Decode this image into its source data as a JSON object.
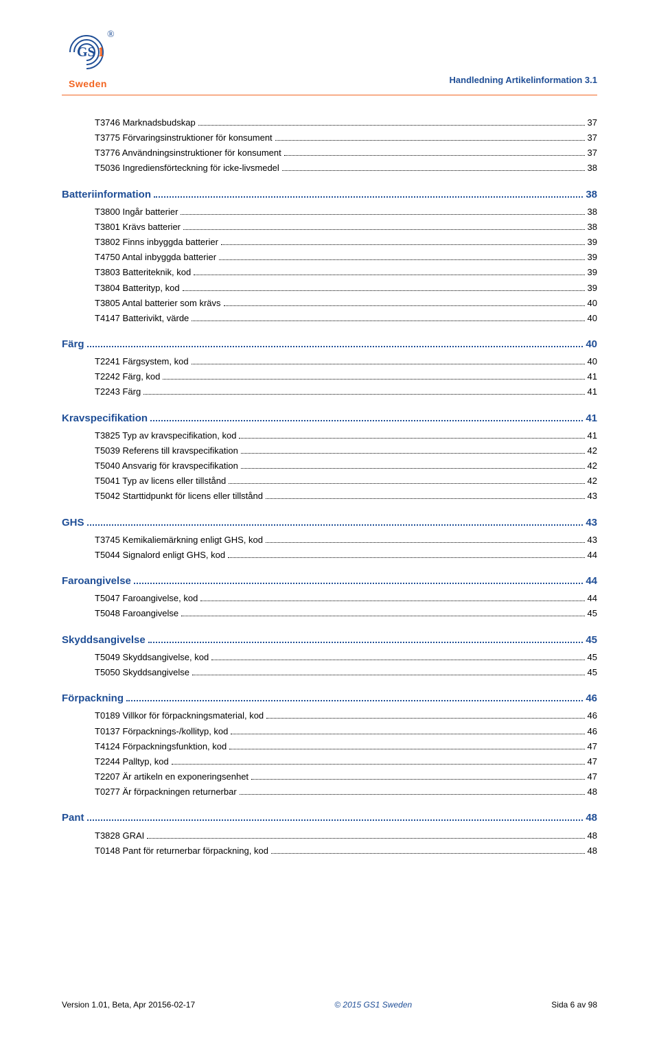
{
  "header": {
    "logo_text": "GS1",
    "logo_subtext": "Sweden",
    "doc_title": "Handledning Artikelinformation 3.1"
  },
  "colors": {
    "accent_blue": "#1f4e96",
    "accent_orange": "#f26522",
    "text_black": "#000000",
    "background": "#ffffff"
  },
  "toc": [
    {
      "level": 2,
      "label": "T3746 Marknadsbudskap",
      "page": "37"
    },
    {
      "level": 2,
      "label": "T3775 Förvaringsinstruktioner för konsument",
      "page": "37"
    },
    {
      "level": 2,
      "label": "T3776 Användningsinstruktioner för konsument",
      "page": "37"
    },
    {
      "level": 2,
      "label": "T5036 Ingrediensförteckning för icke-livsmedel",
      "page": "38"
    },
    {
      "level": 1,
      "label": "Batteriinformation",
      "page": "38"
    },
    {
      "level": 2,
      "label": "T3800 Ingår batterier",
      "page": "38"
    },
    {
      "level": 2,
      "label": "T3801 Krävs batterier",
      "page": "38"
    },
    {
      "level": 2,
      "label": "T3802 Finns inbyggda batterier",
      "page": "39"
    },
    {
      "level": 2,
      "label": "T4750 Antal inbyggda batterier",
      "page": "39"
    },
    {
      "level": 2,
      "label": "T3803 Batteriteknik, kod",
      "page": "39"
    },
    {
      "level": 2,
      "label": "T3804 Batterityp, kod",
      "page": "39"
    },
    {
      "level": 2,
      "label": "T3805 Antal batterier som krävs",
      "page": "40"
    },
    {
      "level": 2,
      "label": "T4147 Batterivikt, värde",
      "page": "40"
    },
    {
      "level": 1,
      "label": "Färg",
      "page": "40"
    },
    {
      "level": 2,
      "label": "T2241 Färgsystem, kod",
      "page": "40"
    },
    {
      "level": 2,
      "label": "T2242 Färg, kod",
      "page": "41"
    },
    {
      "level": 2,
      "label": "T2243 Färg",
      "page": "41"
    },
    {
      "level": 1,
      "label": "Kravspecifikation",
      "page": "41"
    },
    {
      "level": 2,
      "label": "T3825 Typ av kravspecifikation, kod",
      "page": "41"
    },
    {
      "level": 2,
      "label": "T5039 Referens till kravspecifikation",
      "page": "42"
    },
    {
      "level": 2,
      "label": "T5040 Ansvarig för kravspecifikation",
      "page": "42"
    },
    {
      "level": 2,
      "label": "T5041 Typ av licens eller tillstånd",
      "page": "42"
    },
    {
      "level": 2,
      "label": "T5042 Starttidpunkt för licens eller tillstånd",
      "page": "43"
    },
    {
      "level": 1,
      "label": "GHS",
      "page": "43"
    },
    {
      "level": 2,
      "label": "T3745 Kemikaliemärkning enligt GHS, kod",
      "page": "43"
    },
    {
      "level": 2,
      "label": "T5044 Signalord enligt GHS, kod",
      "page": "44"
    },
    {
      "level": 1,
      "label": "Faroangivelse",
      "page": "44"
    },
    {
      "level": 2,
      "label": "T5047 Faroangivelse, kod",
      "page": "44"
    },
    {
      "level": 2,
      "label": "T5048 Faroangivelse",
      "page": "45"
    },
    {
      "level": 1,
      "label": "Skyddsangivelse",
      "page": "45"
    },
    {
      "level": 2,
      "label": "T5049 Skyddsangivelse, kod",
      "page": "45"
    },
    {
      "level": 2,
      "label": "T5050 Skyddsangivelse",
      "page": "45"
    },
    {
      "level": 1,
      "label": "Förpackning",
      "page": "46"
    },
    {
      "level": 2,
      "label": "T0189 Villkor för förpackningsmaterial, kod",
      "page": "46"
    },
    {
      "level": 2,
      "label": "T0137 Förpacknings-/kollityp, kod",
      "page": "46"
    },
    {
      "level": 2,
      "label": "T4124 Förpackningsfunktion, kod",
      "page": "47"
    },
    {
      "level": 2,
      "label": "T2244 Palltyp, kod",
      "page": "47"
    },
    {
      "level": 2,
      "label": "T2207 Är artikeln en exponeringsenhet",
      "page": "47"
    },
    {
      "level": 2,
      "label": "T0277 Är förpackningen returnerbar",
      "page": "48"
    },
    {
      "level": 1,
      "label": "Pant",
      "page": "48"
    },
    {
      "level": 2,
      "label": "T3828 GRAI",
      "page": "48"
    },
    {
      "level": 2,
      "label": "T0148 Pant för returnerbar förpackning, kod",
      "page": "48"
    }
  ],
  "footer": {
    "left": "Version 1.01, Beta, Apr 20156-02-17",
    "center": "© 2015 GS1 Sweden",
    "right": "Sida 6 av 98"
  }
}
